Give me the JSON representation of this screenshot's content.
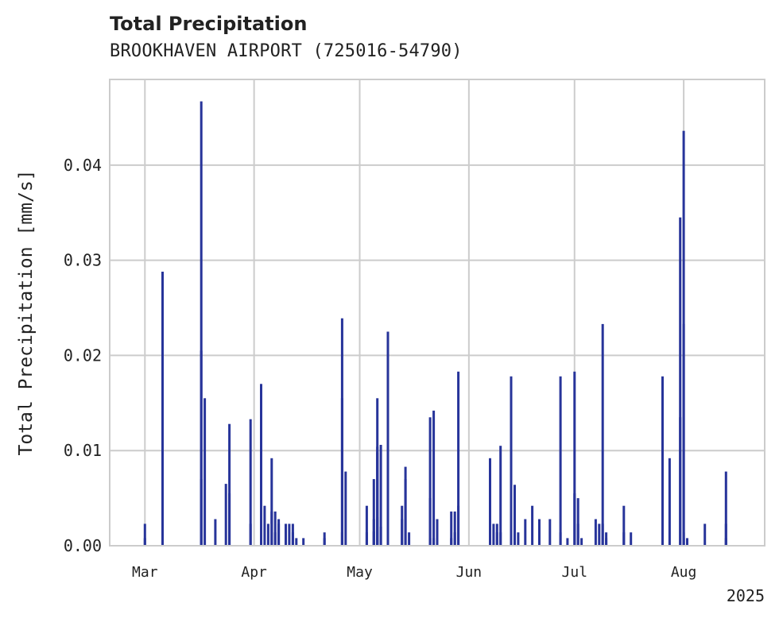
{
  "chart_data": {
    "type": "bar",
    "title": "Total Precipitation",
    "subtitle": "BROOKHAVEN AIRPORT (725016-54790)",
    "ylabel": "Total Precipitation [mm/s]",
    "xlabel": "",
    "x_tick_labels": [
      "Mar",
      "Apr",
      "May",
      "Jun",
      "Jul",
      "Aug"
    ],
    "year_label": "2025",
    "y_tick_labels": [
      "0.00",
      "0.01",
      "0.02",
      "0.03",
      "0.04"
    ],
    "ylim": [
      0,
      0.049
    ],
    "xlim": [
      "2025-02-19",
      "2025-08-24"
    ],
    "grid": true,
    "bar_color": "#27349a",
    "x": [
      "2025-03-01",
      "2025-03-01",
      "2025-03-06",
      "2025-03-06",
      "2025-03-06",
      "2025-03-17",
      "2025-03-17",
      "2025-03-17",
      "2025-03-18",
      "2025-03-21",
      "2025-03-24",
      "2025-03-25",
      "2025-03-25",
      "2025-03-31",
      "2025-03-31",
      "2025-04-03",
      "2025-04-03",
      "2025-04-04",
      "2025-04-05",
      "2025-04-06",
      "2025-04-06",
      "2025-04-07",
      "2025-04-07",
      "2025-04-08",
      "2025-04-08",
      "2025-04-10",
      "2025-04-11",
      "2025-04-12",
      "2025-04-12",
      "2025-04-13",
      "2025-04-15",
      "2025-04-21",
      "2025-04-21",
      "2025-04-26",
      "2025-04-26",
      "2025-04-26",
      "2025-04-27",
      "2025-05-03",
      "2025-05-03",
      "2025-05-05",
      "2025-05-05",
      "2025-05-05",
      "2025-05-06",
      "2025-05-06",
      "2025-05-06",
      "2025-05-06",
      "2025-05-07",
      "2025-05-07",
      "2025-05-09",
      "2025-05-09",
      "2025-05-09",
      "2025-05-13",
      "2025-05-13",
      "2025-05-14",
      "2025-05-14",
      "2025-05-15",
      "2025-05-21",
      "2025-05-21",
      "2025-05-21",
      "2025-05-22",
      "2025-05-22",
      "2025-05-23",
      "2025-05-27",
      "2025-05-27",
      "2025-05-28",
      "2025-05-28",
      "2025-05-29",
      "2025-05-29",
      "2025-06-07",
      "2025-06-07",
      "2025-06-08",
      "2025-06-09",
      "2025-06-09",
      "2025-06-10",
      "2025-06-10",
      "2025-06-13",
      "2025-06-13",
      "2025-06-14",
      "2025-06-15",
      "2025-06-17",
      "2025-06-19",
      "2025-06-21",
      "2025-06-24",
      "2025-06-27",
      "2025-06-27",
      "2025-06-29",
      "2025-07-01",
      "2025-07-01",
      "2025-07-02",
      "2025-07-02",
      "2025-07-03",
      "2025-07-07",
      "2025-07-08",
      "2025-07-09",
      "2025-07-09",
      "2025-07-10",
      "2025-07-10",
      "2025-07-15",
      "2025-07-15",
      "2025-07-17",
      "2025-07-26",
      "2025-07-26",
      "2025-07-28",
      "2025-07-31",
      "2025-07-31",
      "2025-08-01",
      "2025-08-01",
      "2025-08-01",
      "2025-08-01",
      "2025-08-02",
      "2025-08-07",
      "2025-08-13",
      "2025-08-13",
      "2025-08-13"
    ],
    "values": [
      0.0023,
      0.0008,
      0.0288,
      0.0228,
      0.0023,
      0.0467,
      0.0205,
      0.007,
      0.0155,
      0.0028,
      0.0065,
      0.0128,
      0.0055,
      0.0133,
      0.0023,
      0.0008,
      0.017,
      0.0042,
      0.0023,
      0.0036,
      0.0092,
      0.0036,
      0.0014,
      0.0028,
      0.0023,
      0.0023,
      0.0023,
      0.0023,
      0.0014,
      0.0008,
      0.0008,
      0.0014,
      0.0008,
      0.0155,
      0.0239,
      0.0014,
      0.0078,
      0.0042,
      0.0014,
      0.0028,
      0.0015,
      0.007,
      0.0098,
      0.0104,
      0.003,
      0.0155,
      0.0106,
      0.002,
      0.0042,
      0.0225,
      0.0014,
      0.0042,
      0.0028,
      0.0083,
      0.007,
      0.0014,
      0.0008,
      0.0135,
      0.005,
      0.0142,
      0.0008,
      0.0028,
      0.0036,
      0.0008,
      0.0036,
      0.0014,
      0.0183,
      0.0042,
      0.0042,
      0.0092,
      0.0023,
      0.0014,
      0.0023,
      0.0014,
      0.0105,
      0.0023,
      0.0178,
      0.0064,
      0.0014,
      0.0028,
      0.0042,
      0.0028,
      0.0028,
      0.0178,
      0.0014,
      0.0008,
      0.0055,
      0.0183,
      0.0023,
      0.005,
      0.0008,
      0.0028,
      0.0023,
      0.0233,
      0.0023,
      0.0014,
      0.0008,
      0.0042,
      0.0014,
      0.0014,
      0.0178,
      0.0133,
      0.0092,
      0.0345,
      0.0135,
      0.0436,
      0.0233,
      0.0014,
      0.0008,
      0.0008,
      0.0023,
      0.0023,
      0.0078,
      0.0008
    ]
  }
}
